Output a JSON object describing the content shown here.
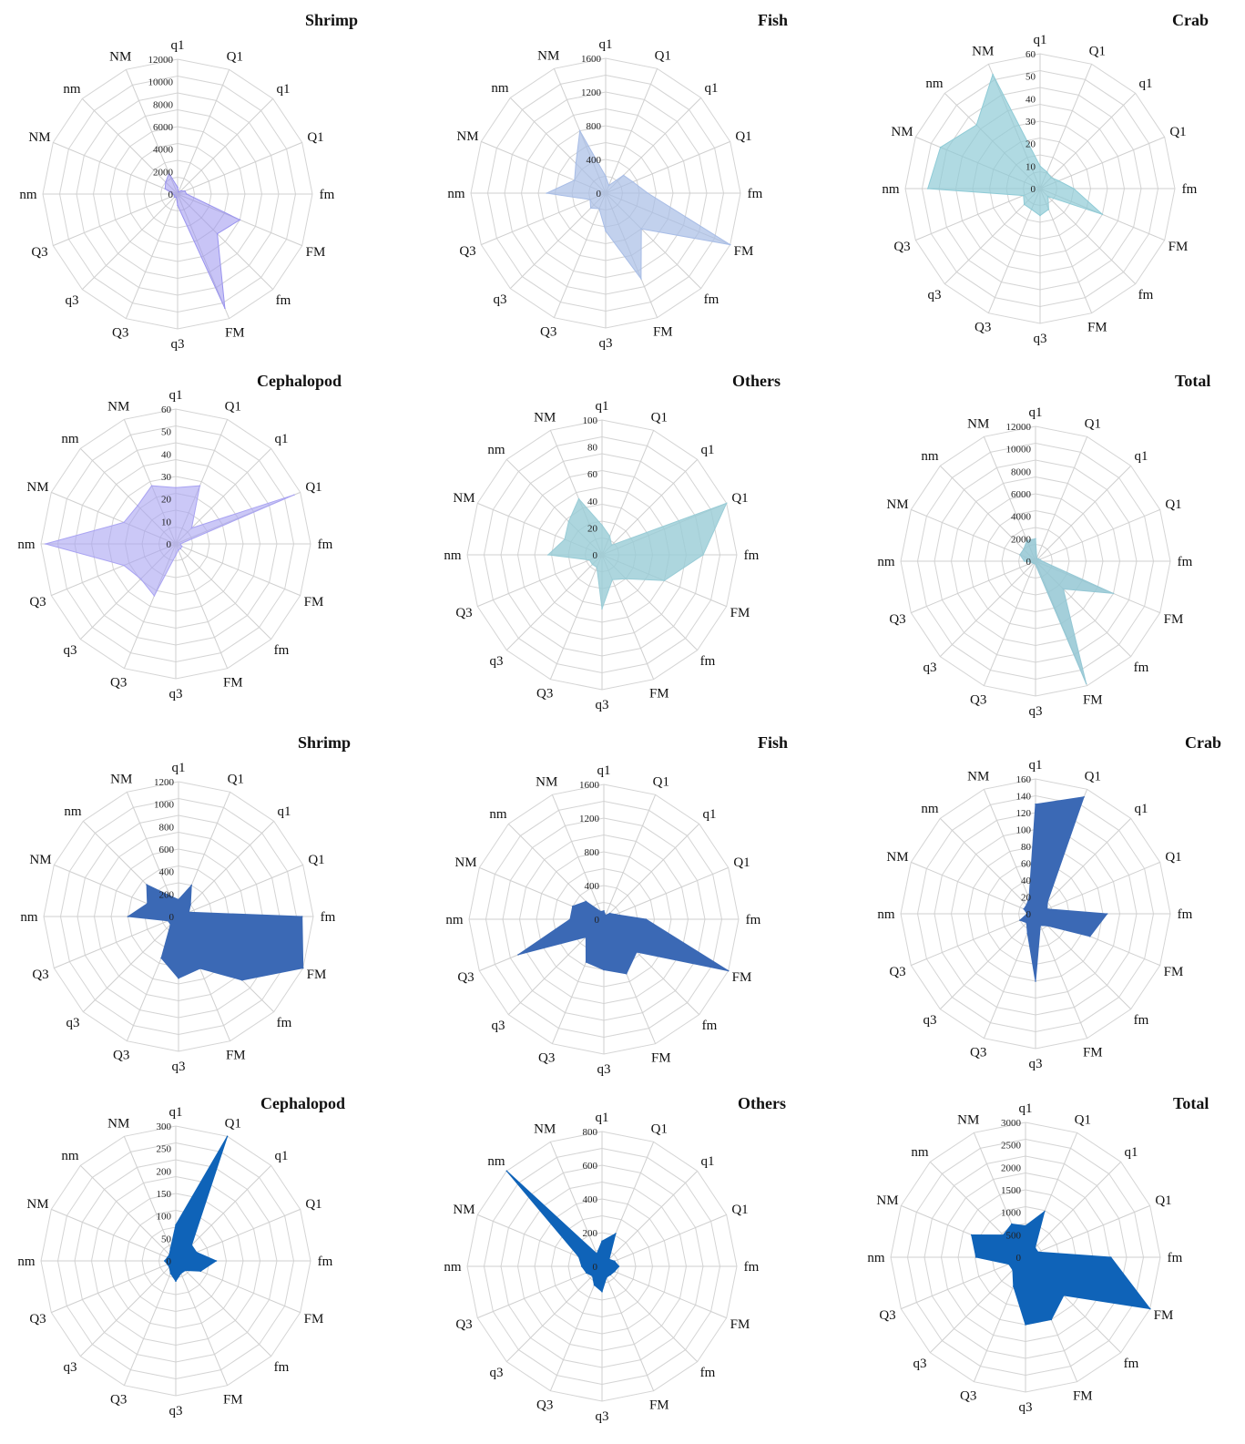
{
  "chart_data": [
    {
      "type": "radar",
      "title": "Shrimp",
      "axes": [
        "q1",
        "Q1",
        "q1",
        "Q1",
        "fm",
        "FM",
        "fm",
        "FM",
        "q3",
        "Q3",
        "q3",
        "Q3",
        "nm",
        "NM",
        "nm",
        "NM"
      ],
      "ticks": [
        "0",
        "2000",
        "4000",
        "6000",
        "8000",
        "10000",
        "12000"
      ],
      "rmax": 12000,
      "color": "#9a94ee",
      "fill_opacity": 0.55,
      "series": [
        {
          "values": [
            600,
            200,
            400,
            700,
            800,
            6000,
            5000,
            11000,
            1000,
            300,
            400,
            300,
            400,
            1200,
            1500,
            2000
          ]
        }
      ]
    },
    {
      "type": "radar",
      "title": "Fish",
      "axes": [
        "q1",
        "Q1",
        "q1",
        "Q1",
        "fm",
        "FM",
        "fm",
        "FM",
        "q3",
        "Q3",
        "q3",
        "Q3",
        "nm",
        "NM",
        "nm",
        "NM"
      ],
      "ticks": [
        "0",
        "400",
        "800",
        "1200",
        "1600"
      ],
      "rmax": 1600,
      "color": "#a8bde6",
      "fill_opacity": 0.7,
      "series": [
        {
          "values": [
            200,
            100,
            300,
            350,
            500,
            1600,
            600,
            1100,
            450,
            200,
            250,
            200,
            700,
            400,
            500,
            800
          ]
        }
      ]
    },
    {
      "type": "radar",
      "title": "Crab",
      "axes": [
        "q1",
        "Q1",
        "q1",
        "Q1",
        "fm",
        "FM",
        "fm",
        "FM",
        "q3",
        "Q3",
        "q3",
        "Q3",
        "nm",
        "NM",
        "nm",
        "NM"
      ],
      "ticks": [
        "0",
        "10",
        "20",
        "30",
        "40",
        "50",
        "60"
      ],
      "rmax": 60,
      "color": "#8fcbd6",
      "fill_opacity": 0.7,
      "series": [
        {
          "values": [
            10,
            8,
            7,
            9,
            15,
            30,
            5,
            10,
            12,
            10,
            10,
            8,
            50,
            48,
            40,
            55
          ]
        }
      ]
    },
    {
      "type": "radar",
      "title": "Cephalopod",
      "axes": [
        "q1",
        "Q1",
        "q1",
        "Q1",
        "fm",
        "FM",
        "fm",
        "FM",
        "q3",
        "Q3",
        "q3",
        "Q3",
        "nm",
        "NM",
        "nm",
        "NM"
      ],
      "ticks": [
        "0",
        "10",
        "20",
        "30",
        "40",
        "50",
        "60"
      ],
      "rmax": 60,
      "color": "#a9a3f2",
      "fill_opacity": 0.6,
      "series": [
        {
          "values": [
            25,
            28,
            10,
            57,
            2,
            3,
            3,
            3,
            5,
            25,
            22,
            25,
            58,
            25,
            24,
            28
          ]
        }
      ]
    },
    {
      "type": "radar",
      "title": "Others",
      "axes": [
        "q1",
        "Q1",
        "q1",
        "Q1",
        "fm",
        "FM",
        "fm",
        "FM",
        "q3",
        "Q3",
        "q3",
        "Q3",
        "nm",
        "NM",
        "nm",
        "NM"
      ],
      "ticks": [
        "0",
        "20",
        "40",
        "60",
        "80",
        "100"
      ],
      "rmax": 100,
      "color": "#99ccd6",
      "fill_opacity": 0.8,
      "series": [
        {
          "values": [
            22,
            15,
            10,
            100,
            75,
            50,
            25,
            20,
            40,
            10,
            10,
            10,
            40,
            30,
            35,
            45
          ]
        }
      ]
    },
    {
      "type": "radar",
      "title": "Total",
      "axes": [
        "q1",
        "Q1",
        "q1",
        "Q1",
        "fm",
        "FM",
        "fm",
        "FM",
        "q3",
        "Q3",
        "q3",
        "Q3",
        "nm",
        "NM",
        "nm",
        "NM"
      ],
      "ticks": [
        "0",
        "2000",
        "4000",
        "6000",
        "8000",
        "10000",
        "12000"
      ],
      "rmax": 12000,
      "color": "#94c7d4",
      "fill_opacity": 0.85,
      "series": [
        {
          "values": [
            2000,
            300,
            300,
            400,
            600,
            7500,
            3500,
            11800,
            300,
            200,
            300,
            300,
            1000,
            1500,
            1500,
            2000
          ]
        }
      ]
    },
    {
      "type": "radar",
      "title": "Shrimp",
      "axes": [
        "q1",
        "Q1",
        "q1",
        "Q1",
        "fm",
        "FM",
        "fm",
        "FM",
        "q3",
        "Q3",
        "q3",
        "Q3",
        "nm",
        "NM",
        "nm",
        "NM"
      ],
      "ticks": [
        "0",
        "200",
        "400",
        "600",
        "800",
        "1000",
        "1200"
      ],
      "rmax": 1200,
      "color": "#3b69b5",
      "fill_opacity": 1,
      "series": [
        {
          "values": [
            150,
            300,
            150,
            100,
            1100,
            1200,
            800,
            500,
            550,
            400,
            100,
            100,
            450,
            300,
            400,
            200
          ]
        }
      ]
    },
    {
      "type": "radar",
      "title": "Fish",
      "axes": [
        "q1",
        "Q1",
        "q1",
        "Q1",
        "fm",
        "FM",
        "fm",
        "FM",
        "q3",
        "Q3",
        "q3",
        "Q3",
        "nm",
        "NM",
        "nm",
        "NM"
      ],
      "ticks": [
        "0",
        "400",
        "800",
        "1200",
        "1600"
      ],
      "rmax": 1600,
      "color": "#3b69b5",
      "fill_opacity": 1,
      "series": [
        {
          "values": [
            100,
            50,
            100,
            150,
            500,
            1600,
            550,
            700,
            600,
            550,
            300,
            1100,
            400,
            400,
            300,
            100
          ]
        }
      ]
    },
    {
      "type": "radar",
      "title": "Crab",
      "axes": [
        "q1",
        "Q1",
        "q1",
        "Q1",
        "fm",
        "FM",
        "fm",
        "FM",
        "q3",
        "Q3",
        "q3",
        "Q3",
        "nm",
        "NM",
        "nm",
        "NM"
      ],
      "ticks": [
        "0",
        "20",
        "40",
        "60",
        "80",
        "100",
        "120",
        "140",
        "160"
      ],
      "rmax": 160,
      "color": "#3b69b5",
      "fill_opacity": 1,
      "series": [
        {
          "values": [
            130,
            150,
            20,
            15,
            85,
            70,
            20,
            15,
            80,
            25,
            15,
            20,
            10,
            15,
            15,
            20
          ]
        }
      ]
    },
    {
      "type": "radar",
      "title": "Cephalopod",
      "axes": [
        "q1",
        "Q1",
        "q1",
        "Q1",
        "fm",
        "FM",
        "fm",
        "FM",
        "q3",
        "Q3",
        "q3",
        "Q3",
        "nm",
        "NM",
        "nm",
        "NM"
      ],
      "ticks": [
        "0",
        "50",
        "100",
        "150",
        "200",
        "250",
        "300"
      ],
      "rmax": 300,
      "color": "#0f63b8",
      "fill_opacity": 1,
      "series": [
        {
          "values": [
            80,
            300,
            50,
            50,
            90,
            60,
            30,
            30,
            45,
            30,
            20,
            20,
            25,
            20,
            20,
            30
          ]
        }
      ]
    },
    {
      "type": "radar",
      "title": "Others",
      "axes": [
        "q1",
        "Q1",
        "q1",
        "Q1",
        "fm",
        "FM",
        "fm",
        "FM",
        "q3",
        "Q3",
        "q3",
        "Q3",
        "nm",
        "NM",
        "nm",
        "NM"
      ],
      "ticks": [
        "0",
        "200",
        "400",
        "600",
        "800"
      ],
      "rmax": 800,
      "color": "#0f63b8",
      "fill_opacity": 1,
      "series": [
        {
          "values": [
            150,
            210,
            60,
            80,
            100,
            80,
            70,
            70,
            150,
            120,
            80,
            100,
            120,
            150,
            800,
            80
          ]
        }
      ]
    },
    {
      "type": "radar",
      "title": "Total",
      "axes": [
        "q1",
        "Q1",
        "q1",
        "Q1",
        "fm",
        "FM",
        "fm",
        "FM",
        "q3",
        "Q3",
        "q3",
        "Q3",
        "nm",
        "NM",
        "nm",
        "NM"
      ],
      "ticks": [
        "0",
        "500",
        "1000",
        "1500",
        "2000",
        "2500",
        "3000"
      ],
      "rmax": 3000,
      "color": "#0f63b8",
      "fill_opacity": 1,
      "series": [
        {
          "values": [
            700,
            1100,
            300,
            300,
            1900,
            3000,
            1200,
            1500,
            1500,
            700,
            400,
            400,
            1100,
            1300,
            700,
            800
          ]
        }
      ]
    }
  ]
}
